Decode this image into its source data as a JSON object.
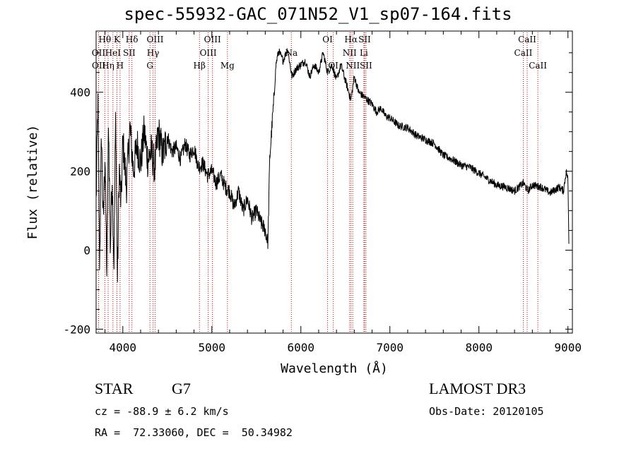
{
  "chart_data": {
    "type": "line",
    "title": "spec-55932-GAC_071N52_V1_sp07-164.fits",
    "xlabel": "Wavelength (Å)",
    "ylabel": "Flux (relative)",
    "xlim": [
      3700,
      9050
    ],
    "ylim": [
      -210,
      555
    ],
    "x_ticks": [
      4000,
      5000,
      6000,
      7000,
      8000,
      9000
    ],
    "y_ticks": [
      -200,
      0,
      200,
      400
    ],
    "series": [
      {
        "name": "flux",
        "color": "#000000",
        "x": [
          3700,
          3720,
          3740,
          3760,
          3780,
          3800,
          3820,
          3840,
          3860,
          3880,
          3900,
          3920,
          3940,
          3960,
          3980,
          4000,
          4040,
          4080,
          4120,
          4160,
          4200,
          4240,
          4280,
          4320,
          4360,
          4400,
          4450,
          4500,
          4550,
          4600,
          4650,
          4700,
          4750,
          4800,
          4850,
          4900,
          4950,
          5000,
          5050,
          5100,
          5150,
          5200,
          5250,
          5300,
          5350,
          5400,
          5450,
          5500,
          5550,
          5600,
          5630,
          5650,
          5680,
          5700,
          5720,
          5750,
          5800,
          5850,
          5900,
          5950,
          6000,
          6050,
          6100,
          6150,
          6200,
          6250,
          6300,
          6350,
          6400,
          6450,
          6500,
          6550,
          6563,
          6600,
          6650,
          6700,
          6750,
          6800,
          6850,
          6900,
          6950,
          7000,
          7100,
          7200,
          7300,
          7400,
          7500,
          7600,
          7700,
          7800,
          7900,
          8000,
          8100,
          8200,
          8300,
          8400,
          8500,
          8550,
          8600,
          8700,
          8800,
          8900,
          8950,
          8980,
          9000,
          9010
        ],
        "values": [
          120,
          380,
          -40,
          300,
          60,
          250,
          -60,
          330,
          0,
          190,
          -40,
          350,
          -80,
          210,
          110,
          280,
          160,
          310,
          200,
          270,
          220,
          300,
          230,
          250,
          210,
          300,
          240,
          290,
          250,
          260,
          230,
          270,
          240,
          260,
          210,
          220,
          190,
          200,
          170,
          190,
          160,
          150,
          110,
          150,
          100,
          130,
          80,
          100,
          70,
          50,
          20,
          230,
          330,
          390,
          470,
          505,
          480,
          510,
          440,
          460,
          470,
          480,
          440,
          470,
          450,
          500,
          450,
          470,
          430,
          470,
          430,
          390,
          380,
          440,
          400,
          390,
          380,
          370,
          350,
          360,
          340,
          335,
          315,
          310,
          290,
          280,
          270,
          240,
          230,
          215,
          210,
          195,
          180,
          165,
          160,
          150,
          170,
          150,
          165,
          160,
          145,
          160,
          150,
          200,
          180,
          20
        ],
        "noise": 45
      }
    ],
    "line_markers": [
      {
        "name": "Hθ",
        "x": 3798,
        "row": 0
      },
      {
        "name": "OII",
        "x": 3727,
        "row": 1
      },
      {
        "name": "OII",
        "x": 3729,
        "row": 2
      },
      {
        "name": "Hη",
        "x": 3835,
        "row": 2
      },
      {
        "name": "HeI",
        "x": 3889,
        "row": 1
      },
      {
        "name": "K",
        "x": 3934,
        "row": 0
      },
      {
        "name": "H",
        "x": 3969,
        "row": 2
      },
      {
        "name": "SII",
        "x": 4072,
        "row": 1
      },
      {
        "name": "Hδ",
        "x": 4102,
        "row": 0
      },
      {
        "name": "OIII",
        "x": 4363,
        "row": 0
      },
      {
        "name": "Hγ",
        "x": 4340,
        "row": 1
      },
      {
        "name": "G",
        "x": 4305,
        "row": 2
      },
      {
        "name": "Hβ",
        "x": 4861,
        "row": 2
      },
      {
        "name": "OIII",
        "x": 5007,
        "row": 0
      },
      {
        "name": "OIII",
        "x": 4959,
        "row": 1
      },
      {
        "name": "Mg",
        "x": 5175,
        "row": 2
      },
      {
        "name": "Na",
        "x": 5893,
        "row": 1
      },
      {
        "name": "OI",
        "x": 6300,
        "row": 0
      },
      {
        "name": "OI",
        "x": 6364,
        "row": 2
      },
      {
        "name": "Hα",
        "x": 6563,
        "row": 0
      },
      {
        "name": "NII",
        "x": 6548,
        "row": 1
      },
      {
        "name": "NII",
        "x": 6583,
        "row": 2
      },
      {
        "name": "SII",
        "x": 6716,
        "row": 0
      },
      {
        "name": "Li",
        "x": 6708,
        "row": 1
      },
      {
        "name": "SII",
        "x": 6731,
        "row": 2
      },
      {
        "name": "CaII",
        "x": 8542,
        "row": 0
      },
      {
        "name": "CaII",
        "x": 8498,
        "row": 1
      },
      {
        "name": "CaII",
        "x": 8662,
        "row": 2
      }
    ],
    "grid": false,
    "legend": "none"
  },
  "info": {
    "class": "STAR",
    "subclass": "G7",
    "survey": "LAMOST DR3",
    "cz": "cz = -88.9 ± 6.2 km/s",
    "obs_date": "Obs-Date: 20120105",
    "coords": "RA =  72.33060, DEC =  50.34982"
  },
  "colors": {
    "marker": "#cc0000",
    "axis": "#000000"
  }
}
